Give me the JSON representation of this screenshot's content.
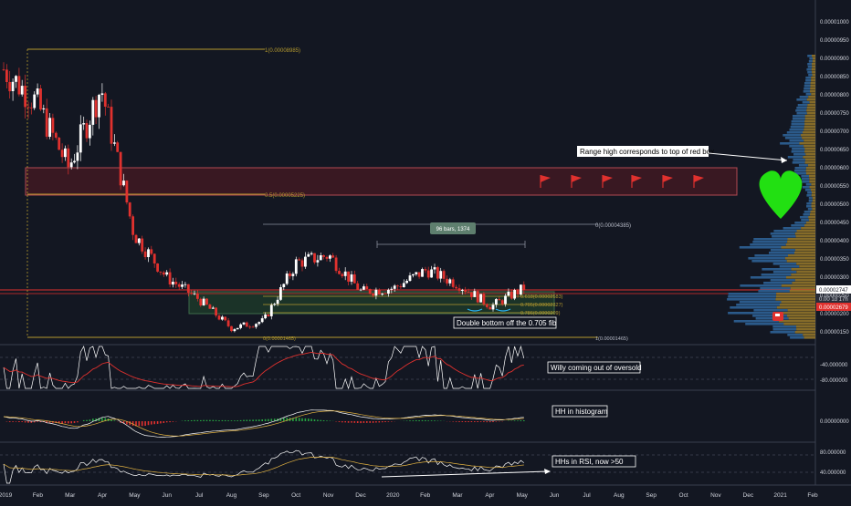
{
  "colors": {
    "background": "#131722",
    "up": "#ffffff",
    "down": "#e0312e",
    "grid": "#1e2230",
    "axis_text": "#d1d4dc",
    "fib_line": "#b59a2e",
    "red_box": "#5a1a22",
    "green_zone": "#1e3b2a",
    "volume_profile": "#2b5a8a",
    "volume_profile_hi": "#9a7a2a"
  },
  "chart_data": [
    {
      "panel": "price",
      "type": "candlestick",
      "title": "",
      "x_axis_labels": [
        "2019",
        "Feb",
        "Mar",
        "Apr",
        "May",
        "Jun",
        "Jul",
        "Aug",
        "Sep",
        "Oct",
        "Nov",
        "Dec",
        "2020",
        "Feb",
        "Mar",
        "Apr",
        "May",
        "Jun",
        "Jul",
        "Aug",
        "Sep",
        "Oct",
        "Nov",
        "Dec",
        "2021",
        "Feb"
      ],
      "y_axis_labels": [
        "0.00001000",
        "0.00000950",
        "0.00000900",
        "0.00000850",
        "0.00000800",
        "0.00000750",
        "0.00000700",
        "0.00000650",
        "0.00000600",
        "0.00000550",
        "0.00000500",
        "0.00000450",
        "0.00000400",
        "0.00000350",
        "0.00000300",
        "0.00000250",
        "0.00000200",
        "0.00000150"
      ],
      "ylim": [
        1.4e-06,
        1.03e-05
      ],
      "close_series_approx": [
        {
          "x": "2019-01",
          "close": 8.7e-06
        },
        {
          "x": "2019-02",
          "close": 7.8e-06
        },
        {
          "x": "2019-03",
          "close": 6e-06
        },
        {
          "x": "2019-04",
          "close": 8.2e-06
        },
        {
          "x": "2019-05",
          "close": 4.2e-06
        },
        {
          "x": "2019-06",
          "close": 3e-06
        },
        {
          "x": "2019-07",
          "close": 2.4e-06
        },
        {
          "x": "2019-08",
          "close": 1.6e-06
        },
        {
          "x": "2019-09",
          "close": 1.8e-06
        },
        {
          "x": "2019-10",
          "close": 3.4e-06
        },
        {
          "x": "2019-11",
          "close": 3.6e-06
        },
        {
          "x": "2019-12",
          "close": 2.6e-06
        },
        {
          "x": "2020-01",
          "close": 2.7e-06
        },
        {
          "x": "2020-02",
          "close": 3.2e-06
        },
        {
          "x": "2020-03",
          "close": 2.8e-06
        },
        {
          "x": "2020-04",
          "close": 2.2e-06
        },
        {
          "x": "2020-05",
          "close": 2.7e-06
        }
      ],
      "price_labels": {
        "current": "0.00002747",
        "countdown": "0.00 1d 17h",
        "red_price": "0.00002679"
      },
      "fib_levels": [
        {
          "label": "1(0.00008985)",
          "value": 9e-06
        },
        {
          "label": "0.5(0.00005225)",
          "value": 5.2e-06
        },
        {
          "label": "0(0.00004385)",
          "value": 4.4e-06
        },
        {
          "label": "0.618(0.00002583)",
          "value": 2.6e-06
        },
        {
          "label": "0.705(0.00002327)",
          "value": 2.3e-06
        },
        {
          "label": "0.786(0.0000209)",
          "value": 2.1e-06
        },
        {
          "label": "0(0.00001465)",
          "value": 1.5e-06
        },
        {
          "label": "1(0.00001465)",
          "value": 1.5e-06
        }
      ],
      "bars_pattern_label": "96 bars, 1374",
      "annotations": {
        "range_high": "Range high corresponds to top of red box",
        "double_bottom": "Double bottom off the 0.705 fib"
      }
    },
    {
      "panel": "williams_r",
      "type": "line",
      "y_axis_labels": [
        "-40.000000",
        "-80.000000"
      ],
      "annotation": "Willy coming out of oversold"
    },
    {
      "panel": "macd",
      "type": "line",
      "y_axis_labels": [
        "0.00000000"
      ],
      "annotation": "HH in histogram"
    },
    {
      "panel": "rsi",
      "type": "line",
      "y_axis_labels": [
        "80.000000",
        "40.000000"
      ],
      "annotation": "HHs in RSI, now >50"
    }
  ]
}
